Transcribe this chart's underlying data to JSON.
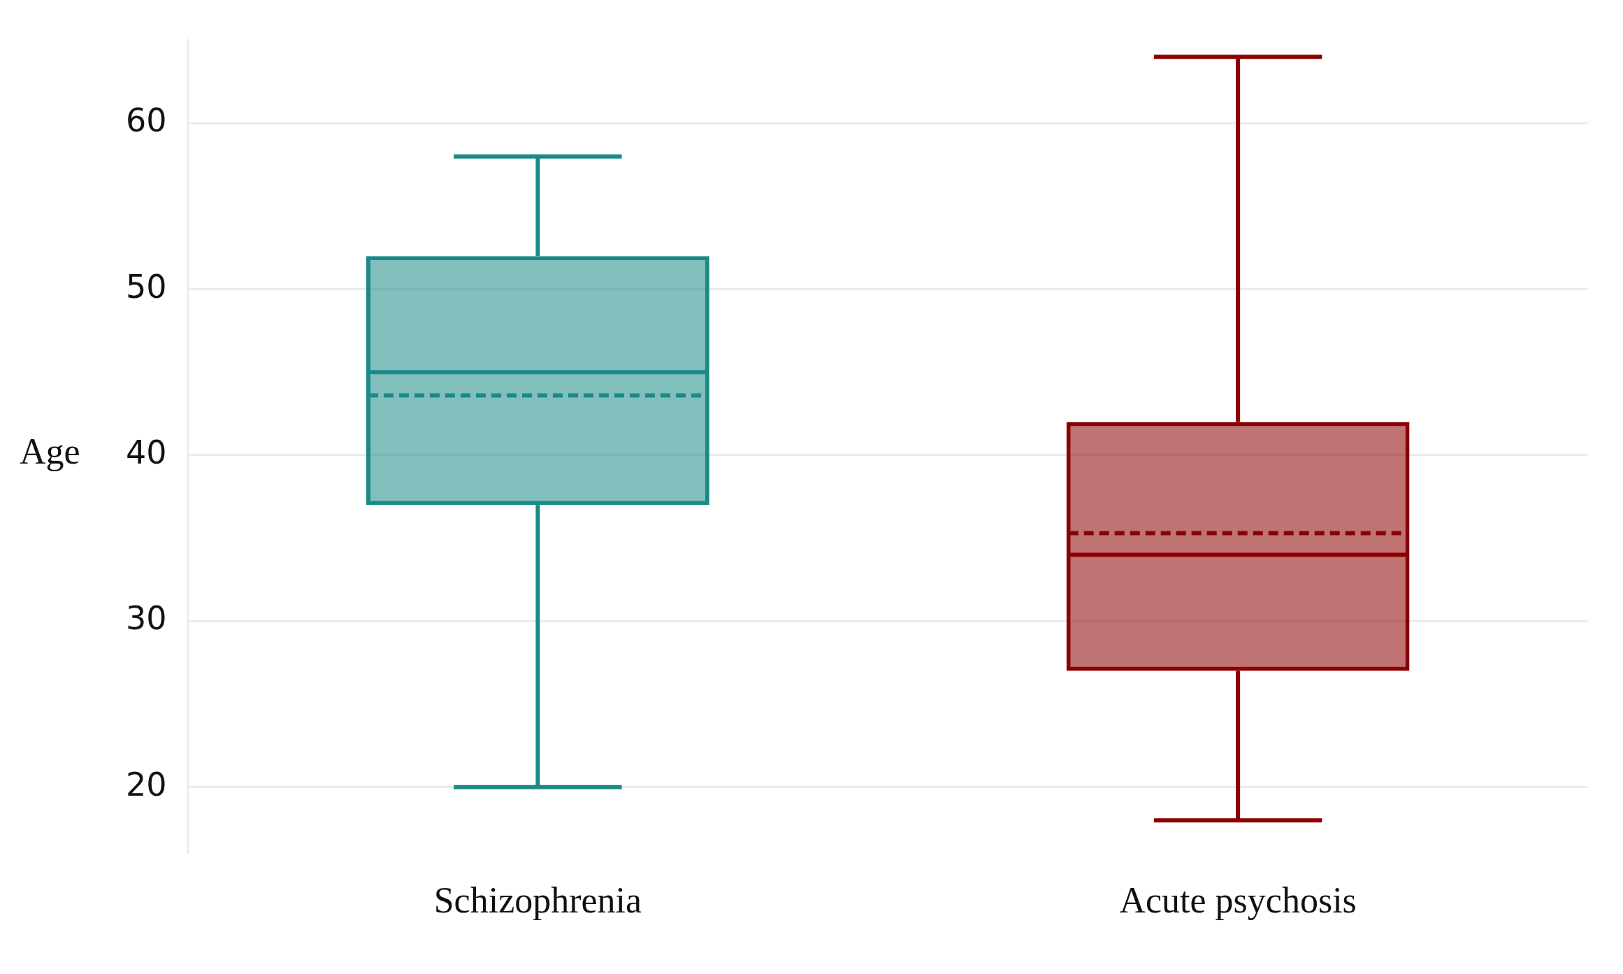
{
  "chart_data": {
    "type": "box",
    "ylabel": "Age",
    "categories": [
      "Schizophrenia",
      "Acute psychosis"
    ],
    "boxes": [
      {
        "low": 20,
        "q1": 37,
        "median": 45,
        "q3": 52,
        "high": 58,
        "mean": 43.6
      },
      {
        "low": 18,
        "q1": 27,
        "median": 34,
        "q3": 42,
        "high": 64,
        "mean": 35.3
      }
    ],
    "colors": [
      "#1a8a87",
      "#8b0000"
    ],
    "ylim": [
      16,
      65
    ],
    "yticks": [
      20,
      30,
      40,
      50,
      60
    ],
    "grid": "y"
  }
}
